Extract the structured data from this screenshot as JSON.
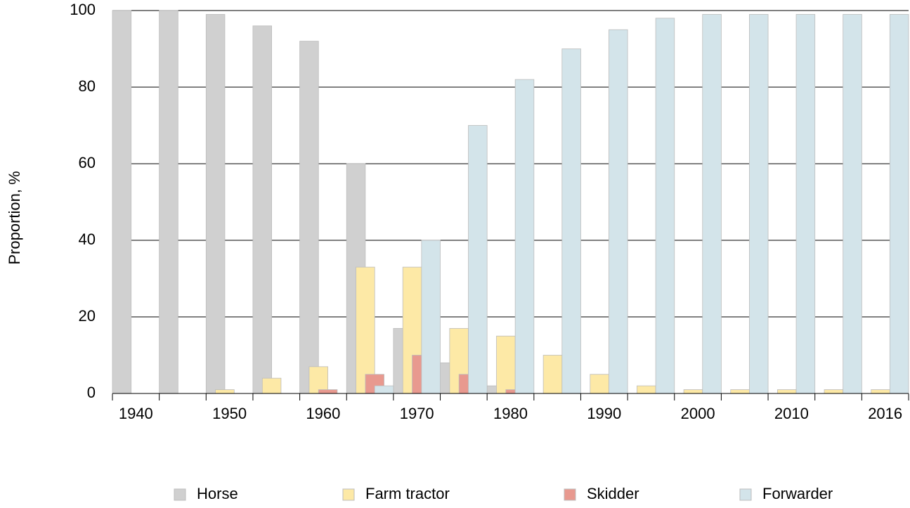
{
  "chart_data": {
    "type": "bar",
    "y_label": "Proportion, %",
    "categories": [
      "1940",
      null,
      "1950",
      null,
      "1960",
      null,
      "1970",
      null,
      "1980",
      null,
      "1990",
      null,
      "2000",
      null,
      "2010",
      null,
      "2016"
    ],
    "series": [
      {
        "name": "Horse",
        "color": "#d0d0d0",
        "values": [
          100,
          100,
          99,
          96,
          92,
          60,
          17,
          8,
          2,
          0,
          0,
          0,
          0,
          0,
          0,
          0,
          0
        ]
      },
      {
        "name": "Farm tractor",
        "color": "#fde9a6",
        "values": [
          0,
          0,
          1,
          4,
          7,
          33,
          33,
          17,
          15,
          10,
          5,
          2,
          1,
          1,
          1,
          1,
          1
        ]
      },
      {
        "name": "Skidder",
        "color": "#e8998f",
        "values": [
          0,
          0,
          0,
          0,
          1,
          5,
          10,
          5,
          1,
          0,
          0,
          0,
          0,
          0,
          0,
          0,
          0
        ]
      },
      {
        "name": "Forwarder",
        "color": "#d3e4ea",
        "values": [
          0,
          0,
          0,
          0,
          0,
          2,
          40,
          70,
          82,
          90,
          95,
          98,
          99,
          99,
          99,
          99,
          99
        ]
      }
    ],
    "ylim": [
      0,
      100
    ],
    "yticks": [
      0,
      20,
      40,
      60,
      80,
      100
    ],
    "grid": true
  }
}
